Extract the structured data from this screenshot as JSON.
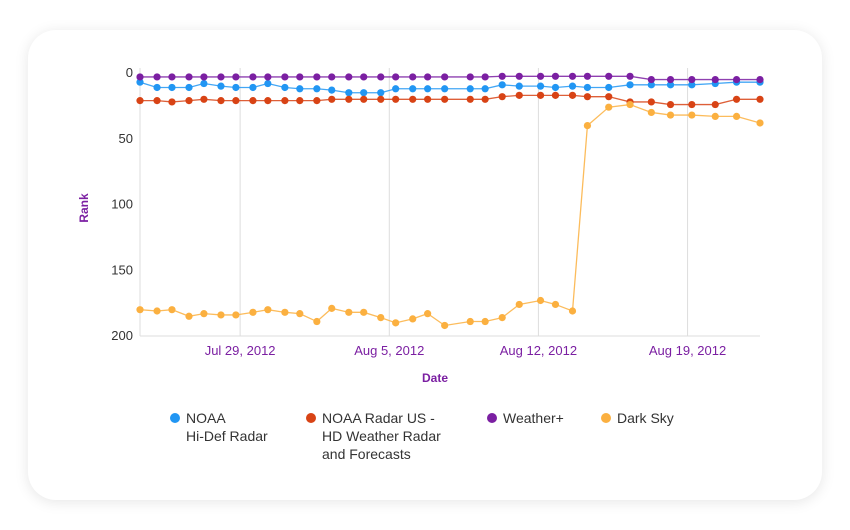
{
  "chart_data": {
    "type": "line",
    "title": "",
    "xlabel": "Date",
    "ylabel": "Rank",
    "ylim": [
      0,
      200
    ],
    "y_inverted": true,
    "yticks": [
      "0",
      "50",
      "100",
      "150",
      "200"
    ],
    "ytick_values": [
      0,
      50,
      100,
      150,
      200
    ],
    "x_unit": "days since Jul 29, 2012",
    "xlim": [
      -4.7,
      24.4
    ],
    "xticks": [
      "Jul 29, 2012",
      "Aug 5, 2012",
      "Aug 12, 2012",
      "Aug 19, 2012"
    ],
    "xtick_values": [
      0,
      7,
      14,
      21
    ],
    "grid": "vertical",
    "legend_position": "bottom",
    "x": [
      -4.7,
      -3.9,
      -3.2,
      -2.4,
      -1.7,
      -0.9,
      -0.2,
      0.6,
      1.3,
      2.1,
      2.8,
      3.6,
      4.3,
      5.1,
      5.8,
      6.6,
      7.3,
      8.1,
      8.8,
      9.6,
      10.8,
      11.5,
      12.3,
      13.1,
      14.1,
      14.8,
      15.6,
      16.3,
      17.3,
      18.3,
      19.3,
      20.2,
      21.2,
      22.3,
      23.3,
      24.4
    ],
    "series": [
      {
        "name": "NOAA\nHi-Def Radar",
        "color": "#2196f3",
        "values": [
          7,
          11,
          11,
          11,
          8,
          10,
          11,
          11,
          8,
          11,
          12,
          12,
          13,
          15,
          15,
          15,
          12,
          12,
          12,
          12,
          12,
          12,
          9,
          10,
          10,
          11,
          10,
          11,
          11,
          9,
          9,
          9,
          9,
          8,
          7,
          7
        ]
      },
      {
        "name": "NOAA Radar US -\nHD Weather Radar\nand Forecasts",
        "color": "#d84315",
        "values": [
          21,
          21,
          22,
          21,
          20,
          21,
          21,
          21,
          21,
          21,
          21,
          21,
          20,
          20,
          20,
          20,
          20,
          20,
          20,
          20,
          20,
          20,
          18,
          17,
          17,
          17,
          17,
          18,
          18,
          22,
          22,
          24,
          24,
          24,
          20,
          20
        ]
      },
      {
        "name": "Weather+",
        "color": "#7b1fa2",
        "values": [
          3,
          3,
          3,
          3,
          3,
          3,
          3,
          3,
          3,
          3,
          3,
          3,
          3,
          3,
          3,
          3,
          3,
          3,
          3,
          3,
          3,
          3,
          2.5,
          2.5,
          2.5,
          2.5,
          2.5,
          2.5,
          2.5,
          2.5,
          5,
          5,
          5,
          5,
          5,
          5
        ]
      },
      {
        "name": "Dark Sky",
        "color": "#fbb040",
        "values": [
          180,
          181,
          180,
          185,
          183,
          184,
          184,
          182,
          180,
          182,
          183,
          189,
          179,
          182,
          182,
          186,
          190,
          187,
          183,
          192,
          189,
          189,
          186,
          176,
          173,
          176,
          181,
          40,
          26,
          24,
          30,
          32,
          32,
          33,
          33,
          38
        ]
      }
    ]
  }
}
